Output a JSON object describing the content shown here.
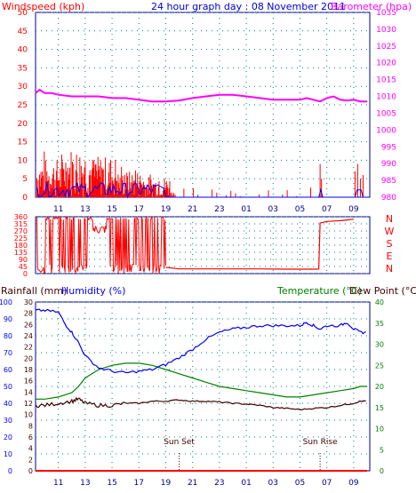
{
  "header": {
    "left_label": "Windspeed (kph)",
    "title": "24 hour graph day : 08 November 2011",
    "right_label": "Barometer (hpa)"
  },
  "colors": {
    "red": "#ff0000",
    "magenta": "#ff00ff",
    "blue": "#0000ff",
    "navy": "#00008b",
    "green": "#008000",
    "dark": "#400000",
    "teal": "#008080",
    "grid": "#008080"
  },
  "x_ticks": [
    "11",
    "13",
    "15",
    "17",
    "19",
    "21",
    "23",
    "01",
    "03",
    "05",
    "07",
    "09"
  ],
  "chart_data": [
    {
      "type": "line",
      "name": "wind-barometer",
      "y_left_ticks": [
        "0",
        "5",
        "10",
        "15",
        "20",
        "25",
        "30",
        "35",
        "40",
        "45",
        "50"
      ],
      "y_left_range": [
        0,
        50
      ],
      "y_right_ticks": [
        "980",
        "985",
        "990",
        "995",
        "1000",
        "1005",
        "1010",
        "1015",
        "1020",
        "1025",
        "1030",
        "1035"
      ],
      "y_right_range": [
        980,
        1035
      ],
      "barometer_series": {
        "x_hours": [
          9.3,
          9.6,
          10,
          10.5,
          11,
          12,
          13,
          14,
          15,
          16,
          17,
          18,
          19,
          20,
          21,
          22,
          23,
          24,
          25,
          26,
          27,
          28,
          29,
          29.5,
          30,
          30.5,
          31,
          31.5,
          32,
          32.5,
          33,
          33.5,
          34
        ],
        "values": [
          1011,
          1012,
          1011,
          1011,
          1010.5,
          1010,
          1010,
          1010,
          1009.5,
          1009.5,
          1009,
          1008.5,
          1008.5,
          1008.8,
          1009.5,
          1010,
          1010.5,
          1010.5,
          1010,
          1009.5,
          1009,
          1009,
          1009,
          1009.5,
          1009,
          1008.5,
          1009.5,
          1010,
          1009,
          1008.8,
          1009,
          1008.5,
          1008.5
        ]
      },
      "wind_gust_peaks_kph": [
        13,
        17,
        14,
        9,
        7,
        2,
        9,
        3,
        8
      ],
      "wind_average_peak_kph": 4
    },
    {
      "type": "line",
      "name": "wind-direction",
      "y_left_ticks": [
        "0",
        "45",
        "90",
        "135",
        "180",
        "225",
        "270",
        "315",
        "360"
      ],
      "y_left_range": [
        0,
        360
      ],
      "compass_labels": [
        "N",
        "W",
        "S",
        "E",
        "N"
      ],
      "series": [
        {
          "x_hours": [
            19,
            19.5,
            20,
            22,
            24,
            26,
            28,
            30,
            30.4
          ],
          "values": [
            40,
            35,
            30,
            30,
            30,
            30,
            28,
            28,
            28
          ]
        },
        {
          "x_hours": [
            30.4,
            30.5,
            31,
            32,
            32.5,
            33
          ],
          "values": [
            28,
            320,
            330,
            335,
            340,
            345
          ]
        }
      ]
    },
    {
      "type": "line",
      "name": "temperature-humidity",
      "y_left_ticks": [
        "0",
        "10",
        "20",
        "30",
        "40",
        "50",
        "60",
        "70",
        "80",
        "90",
        "100"
      ],
      "y_left_range": [
        0,
        100
      ],
      "y_rain_ticks": [
        "0",
        "2",
        "4",
        "6",
        "8",
        "10",
        "12",
        "14",
        "16",
        "18",
        "20",
        "22",
        "24",
        "26",
        "28",
        "30"
      ],
      "y_rain_range": [
        0,
        30
      ],
      "y_right_ticks": [
        "0",
        "5",
        "10",
        "15",
        "20",
        "25",
        "30",
        "35",
        "40"
      ],
      "y_right_range": [
        0,
        40
      ],
      "labels": {
        "rainfall": "Rainfall (mm)",
        "humidity": "Humidity (%)",
        "temperature": "Temperature (°C)",
        "dew_point": "Dew Point (°C)",
        "sun_set": "Sun Set",
        "sun_rise": "Sun Rise"
      },
      "humidity": {
        "x_hours": [
          9.3,
          10,
          11,
          11.5,
          12,
          12.5,
          13,
          14,
          15,
          16,
          17,
          18,
          19,
          20,
          21,
          22,
          23,
          24,
          25,
          26,
          27,
          28,
          29,
          29.5,
          30,
          30.5,
          31,
          32,
          32.5,
          33,
          33.5,
          34
        ],
        "values": [
          95,
          95,
          94,
          87,
          82,
          76,
          68,
          61,
          59,
          58,
          59,
          60,
          63,
          67,
          72,
          78,
          82,
          84,
          85,
          86,
          86,
          86,
          86,
          88,
          86,
          84,
          86,
          86,
          88,
          84,
          82,
          82
        ]
      },
      "temperature": {
        "x_hours": [
          9.3,
          10,
          11,
          12,
          12.5,
          13,
          14,
          15,
          16,
          17,
          18,
          19,
          20,
          21,
          22,
          23,
          24,
          25,
          26,
          27,
          28,
          29,
          30,
          31,
          32,
          33,
          33.5,
          34
        ],
        "values": [
          17,
          17,
          17.5,
          18.5,
          20,
          22,
          24,
          25,
          25.5,
          25.5,
          25,
          24,
          23,
          22,
          21,
          20,
          19.5,
          19,
          18.5,
          18,
          17.5,
          17.5,
          18,
          18.5,
          19,
          19.5,
          20,
          20
        ]
      },
      "dew_point": {
        "x_hours": [
          9.3,
          10,
          11,
          12,
          12.5,
          13,
          14,
          15,
          16,
          17,
          18,
          19,
          20,
          21,
          22,
          23,
          24,
          25,
          26,
          27,
          28,
          29,
          30,
          31,
          32,
          33,
          33.5,
          34
        ],
        "values": [
          15.5,
          15.5,
          16,
          16.5,
          17,
          16,
          15.5,
          15.5,
          16,
          16,
          16.5,
          16.5,
          16.8,
          16.5,
          16.5,
          16.3,
          16,
          15.8,
          15.5,
          15,
          14.8,
          14.5,
          14.8,
          15,
          15.5,
          16,
          16.5,
          16.5
        ]
      },
      "rainfall": {
        "x_hours": [
          9.3,
          34
        ],
        "values": [
          0,
          0
        ]
      },
      "sun_set_hour": 20,
      "sun_rise_hour": 30.5
    }
  ]
}
